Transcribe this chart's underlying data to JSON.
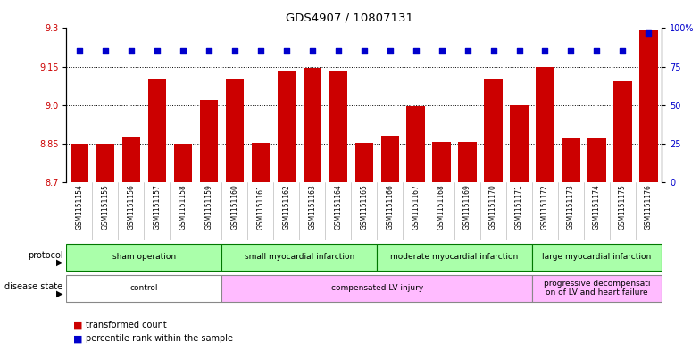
{
  "title": "GDS4907 / 10807131",
  "samples": [
    "GSM1151154",
    "GSM1151155",
    "GSM1151156",
    "GSM1151157",
    "GSM1151158",
    "GSM1151159",
    "GSM1151160",
    "GSM1151161",
    "GSM1151162",
    "GSM1151163",
    "GSM1151164",
    "GSM1151165",
    "GSM1151166",
    "GSM1151167",
    "GSM1151168",
    "GSM1151169",
    "GSM1151170",
    "GSM1151171",
    "GSM1151172",
    "GSM1151173",
    "GSM1151174",
    "GSM1151175",
    "GSM1151176"
  ],
  "bar_values": [
    8.852,
    8.852,
    8.878,
    9.105,
    8.852,
    9.02,
    9.105,
    8.855,
    9.13,
    9.145,
    9.13,
    8.855,
    8.88,
    8.995,
    8.858,
    8.858,
    9.105,
    9.0,
    9.15,
    8.873,
    8.87,
    9.095,
    9.29
  ],
  "percentile_values": [
    85,
    85,
    85,
    85,
    85,
    85,
    85,
    85,
    85,
    85,
    85,
    85,
    85,
    85,
    85,
    85,
    85,
    85,
    85,
    85,
    85,
    85,
    97
  ],
  "ylim_left": [
    8.7,
    9.3
  ],
  "ylim_right": [
    0,
    100
  ],
  "yticks_left": [
    8.7,
    8.85,
    9.0,
    9.15,
    9.3
  ],
  "yticks_right": [
    0,
    25,
    50,
    75,
    100
  ],
  "bar_color": "#cc0000",
  "dot_color": "#0000cc",
  "prot_groups": [
    {
      "label": "sham operation",
      "start": 0,
      "end": 6
    },
    {
      "label": "small myocardial infarction",
      "start": 6,
      "end": 12
    },
    {
      "label": "moderate myocardial infarction",
      "start": 12,
      "end": 18
    },
    {
      "label": "large myocardial infarction",
      "start": 18,
      "end": 23
    }
  ],
  "dis_groups": [
    {
      "label": "control",
      "start": 0,
      "end": 6
    },
    {
      "label": "compensated LV injury",
      "start": 6,
      "end": 18
    },
    {
      "label": "progressive decompensati\non of LV and heart failure",
      "start": 18,
      "end": 23
    }
  ],
  "grid_lines": [
    8.85,
    9.0,
    9.15
  ]
}
